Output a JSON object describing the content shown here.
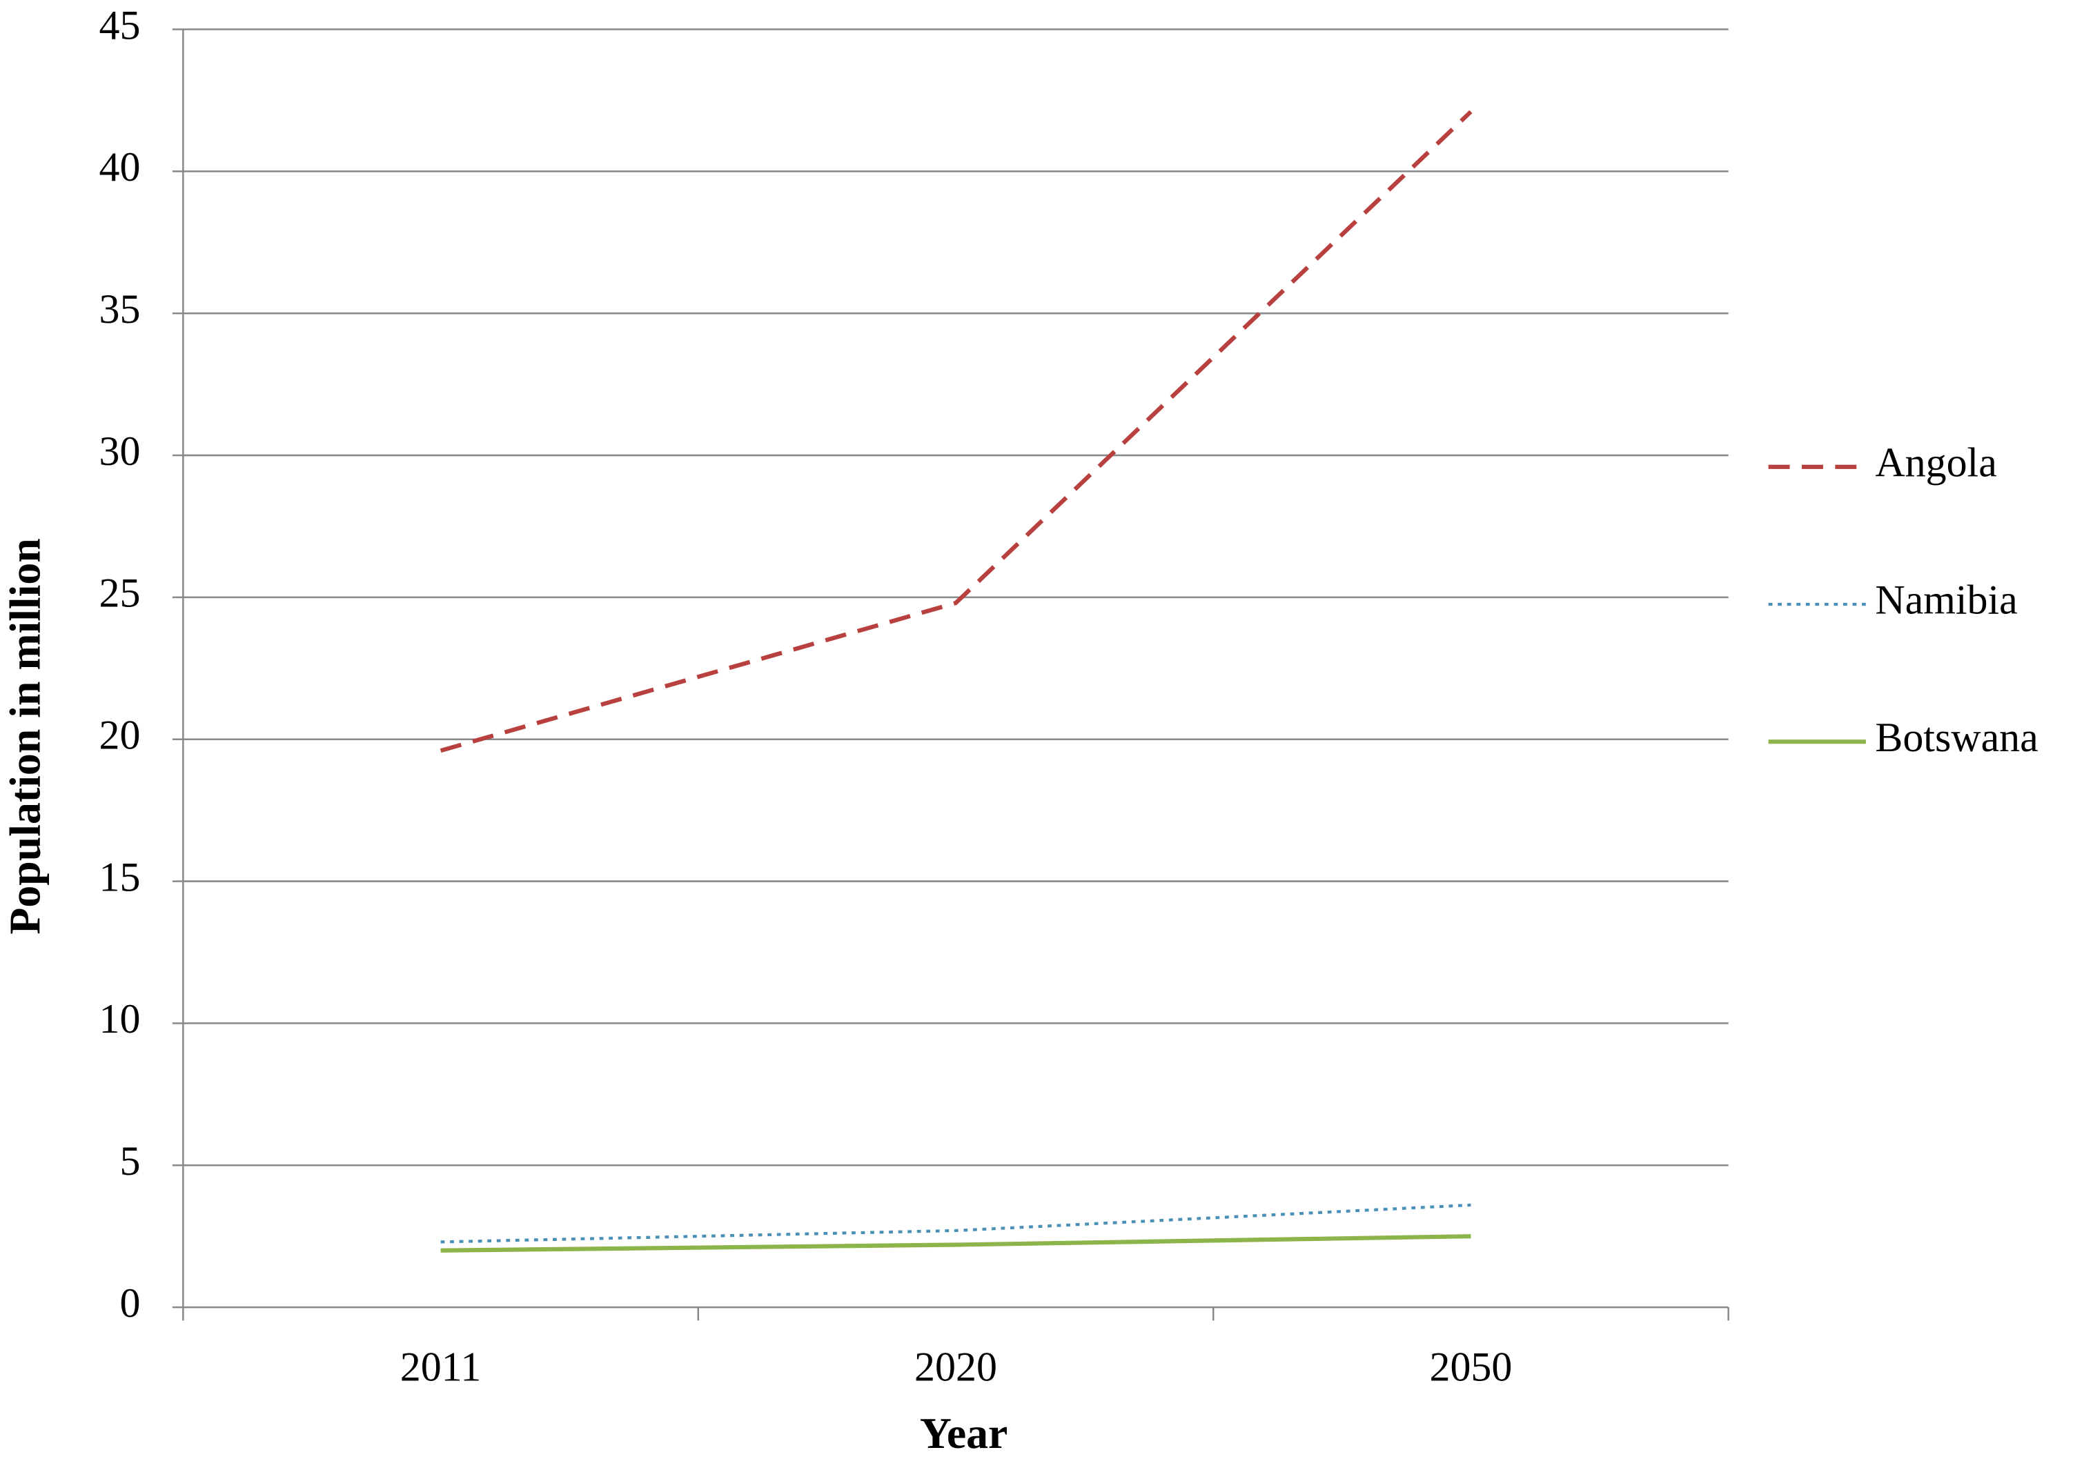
{
  "chart_data": {
    "type": "line",
    "x_label": "Year",
    "y_label": "Population in million",
    "categories": [
      "2011",
      "2020",
      "2050"
    ],
    "series": [
      {
        "name": "Angola",
        "color": "#b8403e",
        "style": "dashed",
        "values": [
          19.6,
          24.8,
          42.1
        ]
      },
      {
        "name": "Namibia",
        "color": "#4a8fb5",
        "style": "dotted",
        "values": [
          2.3,
          2.7,
          3.6
        ]
      },
      {
        "name": "Botswana",
        "color": "#8db44a",
        "style": "solid",
        "values": [
          2.0,
          2.2,
          2.5
        ]
      }
    ],
    "ylim": [
      0,
      45
    ],
    "yticks": [
      0,
      5,
      10,
      15,
      20,
      25,
      30,
      35,
      40,
      45
    ],
    "grid": true,
    "legend": "right"
  }
}
